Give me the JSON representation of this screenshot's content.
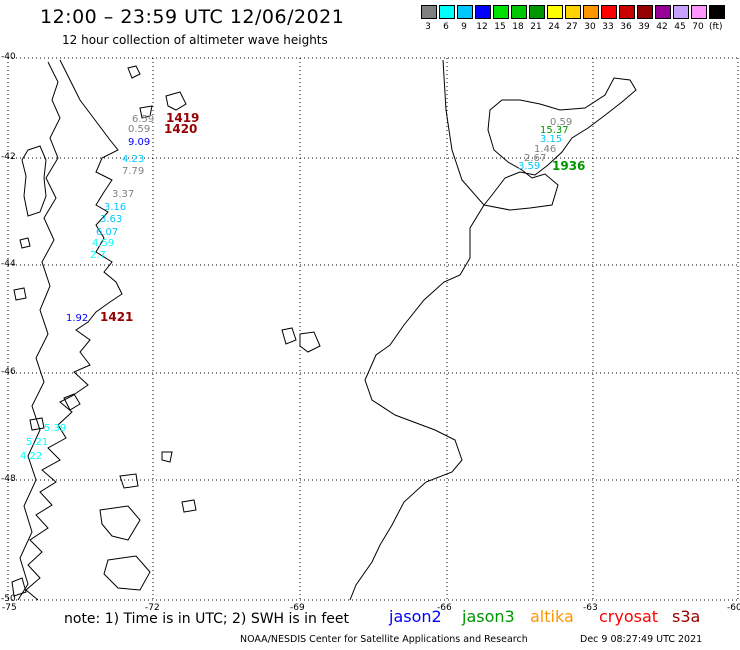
{
  "header": {
    "title": "12:00 – 23:59 UTC 12/06/2021",
    "subtitle": "12 hour collection of altimeter wave heights"
  },
  "colorbar": {
    "unit": "(ft)",
    "bins": [
      {
        "label": "3",
        "color": "#808080"
      },
      {
        "label": "6",
        "color": "#00ffff"
      },
      {
        "label": "9",
        "color": "#00c8ff"
      },
      {
        "label": "12",
        "color": "#0000ff"
      },
      {
        "label": "15",
        "color": "#00e100"
      },
      {
        "label": "18",
        "color": "#00c800"
      },
      {
        "label": "21",
        "color": "#009600"
      },
      {
        "label": "24",
        "color": "#ffff00"
      },
      {
        "label": "27",
        "color": "#ffd200"
      },
      {
        "label": "30",
        "color": "#ff9600"
      },
      {
        "label": "33",
        "color": "#ff0000"
      },
      {
        "label": "36",
        "color": "#c80000"
      },
      {
        "label": "39",
        "color": "#960000"
      },
      {
        "label": "42",
        "color": "#960096"
      },
      {
        "label": "45",
        "color": "#c8a0ff"
      },
      {
        "label": "70",
        "color": "#ff96ff"
      },
      {
        "label": "",
        "color": "#000000"
      }
    ]
  },
  "axes": {
    "lon_ticks": [
      "-75",
      "-72",
      "-69",
      "-66",
      "-63",
      "-60"
    ],
    "lat_ticks": [
      "-40",
      "-42",
      "-44",
      "-46",
      "-48",
      "-50"
    ]
  },
  "passes": [
    {
      "label": "1419",
      "color": "#960000"
    },
    {
      "label": "1420",
      "color": "#960000"
    },
    {
      "label": "1421",
      "color": "#960000"
    },
    {
      "label": "1936",
      "color": "#009600"
    }
  ],
  "observations": [
    {
      "text": "6.59",
      "color": "#808080"
    },
    {
      "text": "0.59",
      "color": "#808080"
    },
    {
      "text": "9.09",
      "color": "#0000ff"
    },
    {
      "text": "4.23",
      "color": "#00c8ff"
    },
    {
      "text": "7.79",
      "color": "#808080"
    },
    {
      "text": "3.37",
      "color": "#808080"
    },
    {
      "text": "3.16",
      "color": "#00c8ff"
    },
    {
      "text": "3.63",
      "color": "#00c8ff"
    },
    {
      "text": "6.07",
      "color": "#00c8ff"
    },
    {
      "text": "4.59",
      "color": "#00ffff"
    },
    {
      "text": "2.7",
      "color": "#00ffff"
    },
    {
      "text": "1.92",
      "color": "#0000ff"
    },
    {
      "text": "5.39",
      "color": "#00ffff"
    },
    {
      "text": "5.21",
      "color": "#00ffff"
    },
    {
      "text": "4.22",
      "color": "#00ffff"
    },
    {
      "text": "0.59",
      "color": "#808080"
    },
    {
      "text": "15.37",
      "color": "#009600"
    },
    {
      "text": "3.15",
      "color": "#00c8ff"
    },
    {
      "text": "1.46",
      "color": "#808080"
    },
    {
      "text": "2.67",
      "color": "#808080"
    },
    {
      "text": "3.59",
      "color": "#00c8ff"
    }
  ],
  "footer": {
    "note": "note:  1) Time is in UTC;  2) SWH is in feet",
    "satellites": [
      {
        "name": "jason2",
        "color": "#0000ff"
      },
      {
        "name": "jason3",
        "color": "#009600"
      },
      {
        "name": "altika",
        "color": "#ff9600"
      },
      {
        "name": "cryosat",
        "color": "#ff0000"
      },
      {
        "name": "s3a",
        "color": "#960000"
      }
    ],
    "credit": "NOAA/NESDIS Center for Satellite Applications and Research",
    "timestamp": "Dec  9 08:27:49 UTC 2021"
  }
}
